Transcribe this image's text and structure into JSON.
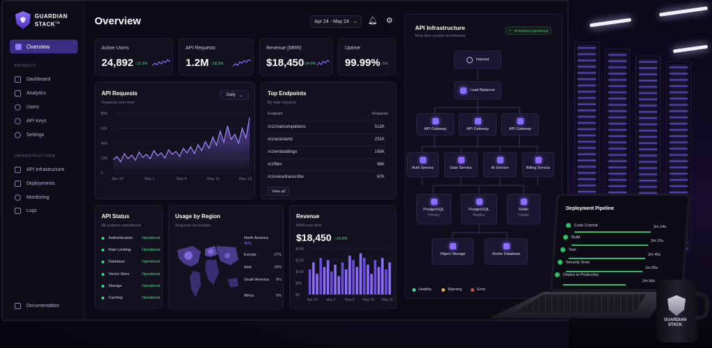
{
  "brand": {
    "name_line1": "GUARDIAN",
    "name_line2": "STACK",
    "mark": "TM"
  },
  "sidebar": {
    "active": "Overview",
    "sections": [
      {
        "title": "PRODUCT",
        "items": [
          "Dashboard",
          "Analytics",
          "Users",
          "API Keys",
          "Settings"
        ]
      },
      {
        "title": "INFRASTRUCTURE",
        "items": [
          "API Infrastructure",
          "Deployments",
          "Monitoring",
          "Logs"
        ]
      }
    ],
    "footer": "Documentation"
  },
  "header": {
    "title": "Overview",
    "date_range": "Apr 24 - May 24"
  },
  "kpis": [
    {
      "label": "Active Users",
      "value": "24,892",
      "change": "↑12.3%"
    },
    {
      "label": "API Requests",
      "value": "1.2M",
      "change": "↑18.2%"
    },
    {
      "label": "Revenue (MRR)",
      "value": "$18,450",
      "change": "↑14.0%"
    },
    {
      "label": "Uptime",
      "value": "99.99%",
      "period": "30d"
    }
  ],
  "api_requests_chart": {
    "title": "API Requests",
    "subtitle": "Requests over time",
    "interval": "Daily"
  },
  "chart_data": [
    {
      "type": "area",
      "title": "API Requests",
      "subtitle": "Requests over time",
      "y_ticks": [
        "80K",
        "60K",
        "40K",
        "20K",
        "0"
      ],
      "ylim": [
        0,
        80000
      ],
      "x_ticks": [
        "Apr 24",
        "May 1",
        "May 8",
        "May 15",
        "May 22"
      ],
      "values": [
        18000,
        22000,
        15000,
        26000,
        19000,
        24000,
        17000,
        28000,
        21000,
        25000,
        19000,
        30000,
        23000,
        27000,
        20000,
        31000,
        25000,
        29000,
        22000,
        33000,
        27000,
        35000,
        26000,
        38000,
        30000,
        42000,
        33000,
        48000,
        37000,
        56000,
        41000,
        63000,
        45000,
        52000,
        40000,
        60000,
        47000,
        74000
      ]
    },
    {
      "type": "bar",
      "title": "Revenue",
      "subtitle": "MRR over time",
      "y_ticks": [
        "$20K",
        "$15K",
        "$10K",
        "$5K",
        "$0"
      ],
      "ylim": [
        0,
        20000
      ],
      "x_ticks": [
        "Apr 24",
        "May 1",
        "May 8",
        "May 15",
        "May 22"
      ],
      "values": [
        11000,
        14000,
        9000,
        16000,
        12000,
        15000,
        10000,
        13000,
        8000,
        14000,
        11000,
        17000,
        15000,
        12000,
        18000,
        16000,
        13000,
        9000,
        15000,
        12000,
        16000,
        11000,
        14000
      ]
    }
  ],
  "top_endpoints": {
    "title": "Top Endpoints",
    "subtitle": "By total requests",
    "col_endpoint": "Endpoint",
    "col_requests": "Requests",
    "rows": [
      {
        "endpoint": "/v1/chat/completions",
        "requests": "512K"
      },
      {
        "endpoint": "/v1/assistants",
        "requests": "231K"
      },
      {
        "endpoint": "/v1/embeddings",
        "requests": "165K"
      },
      {
        "endpoint": "/v1/files",
        "requests": "98K"
      },
      {
        "endpoint": "/v1/voice/transcribe",
        "requests": "67K"
      }
    ],
    "view_all": "View all"
  },
  "api_status": {
    "title": "API Status",
    "subtitle": "All systems operational",
    "rows": [
      {
        "name": "Authentication",
        "status": "Operational"
      },
      {
        "name": "Rate Limiting",
        "status": "Operational"
      },
      {
        "name": "Database",
        "status": "Operational"
      },
      {
        "name": "Vector Store",
        "status": "Operational"
      },
      {
        "name": "Storage",
        "status": "Operational"
      },
      {
        "name": "Caching",
        "status": "Operational"
      }
    ]
  },
  "usage_region": {
    "title": "Usage by Region",
    "subtitle": "Requests by location",
    "regions": [
      {
        "name": "North America",
        "pct": "40%"
      },
      {
        "name": "Europe",
        "pct": "27%"
      },
      {
        "name": "Asia",
        "pct": "18%"
      },
      {
        "name": "South America",
        "pct": "9%"
      },
      {
        "name": "Africa",
        "pct": "6%"
      }
    ]
  },
  "revenue": {
    "title": "Revenue",
    "subtitle": "MRR over time",
    "value": "$18,450",
    "change": "↑14.0%"
  },
  "infrastructure": {
    "title": "API Infrastructure",
    "subtitle": "Real-time system architecture",
    "badge": "All Systems Operational",
    "nodes": {
      "internet": "Internet",
      "lb": "Load Balancer",
      "gw1": "API Gateway",
      "gw2": "API Gateway",
      "gw3": "API Gateway",
      "auth": "Auth Service",
      "user": "User Service",
      "ai": "AI Service",
      "billing": "Billing Service",
      "pg1": "PostgreSQL",
      "pg1_sub": "Primary",
      "pg2": "PostgreSQL",
      "pg2_sub": "Replica",
      "redis": "Redis",
      "redis_sub": "Cluster",
      "obj": "Object Storage",
      "vec": "Vector Database"
    },
    "legend": [
      {
        "label": "Healthy",
        "color": "#3fe08b"
      },
      {
        "label": "Warning",
        "color": "#f5b13d"
      },
      {
        "label": "Error",
        "color": "#ef4a4a"
      }
    ]
  },
  "pipeline": {
    "title": "Deployment Pipeline",
    "steps": [
      {
        "name": "Code Commit",
        "time": "2m 24s"
      },
      {
        "name": "Build",
        "time": "2m 15s"
      },
      {
        "name": "Test",
        "time": "2m 45s"
      },
      {
        "name": "Security Scan",
        "time": "1m 05s"
      },
      {
        "name": "Deploy to Production",
        "time": "2m 56s"
      }
    ]
  },
  "mug": {
    "line1": "GUARDIAN",
    "line2": "STACK"
  }
}
